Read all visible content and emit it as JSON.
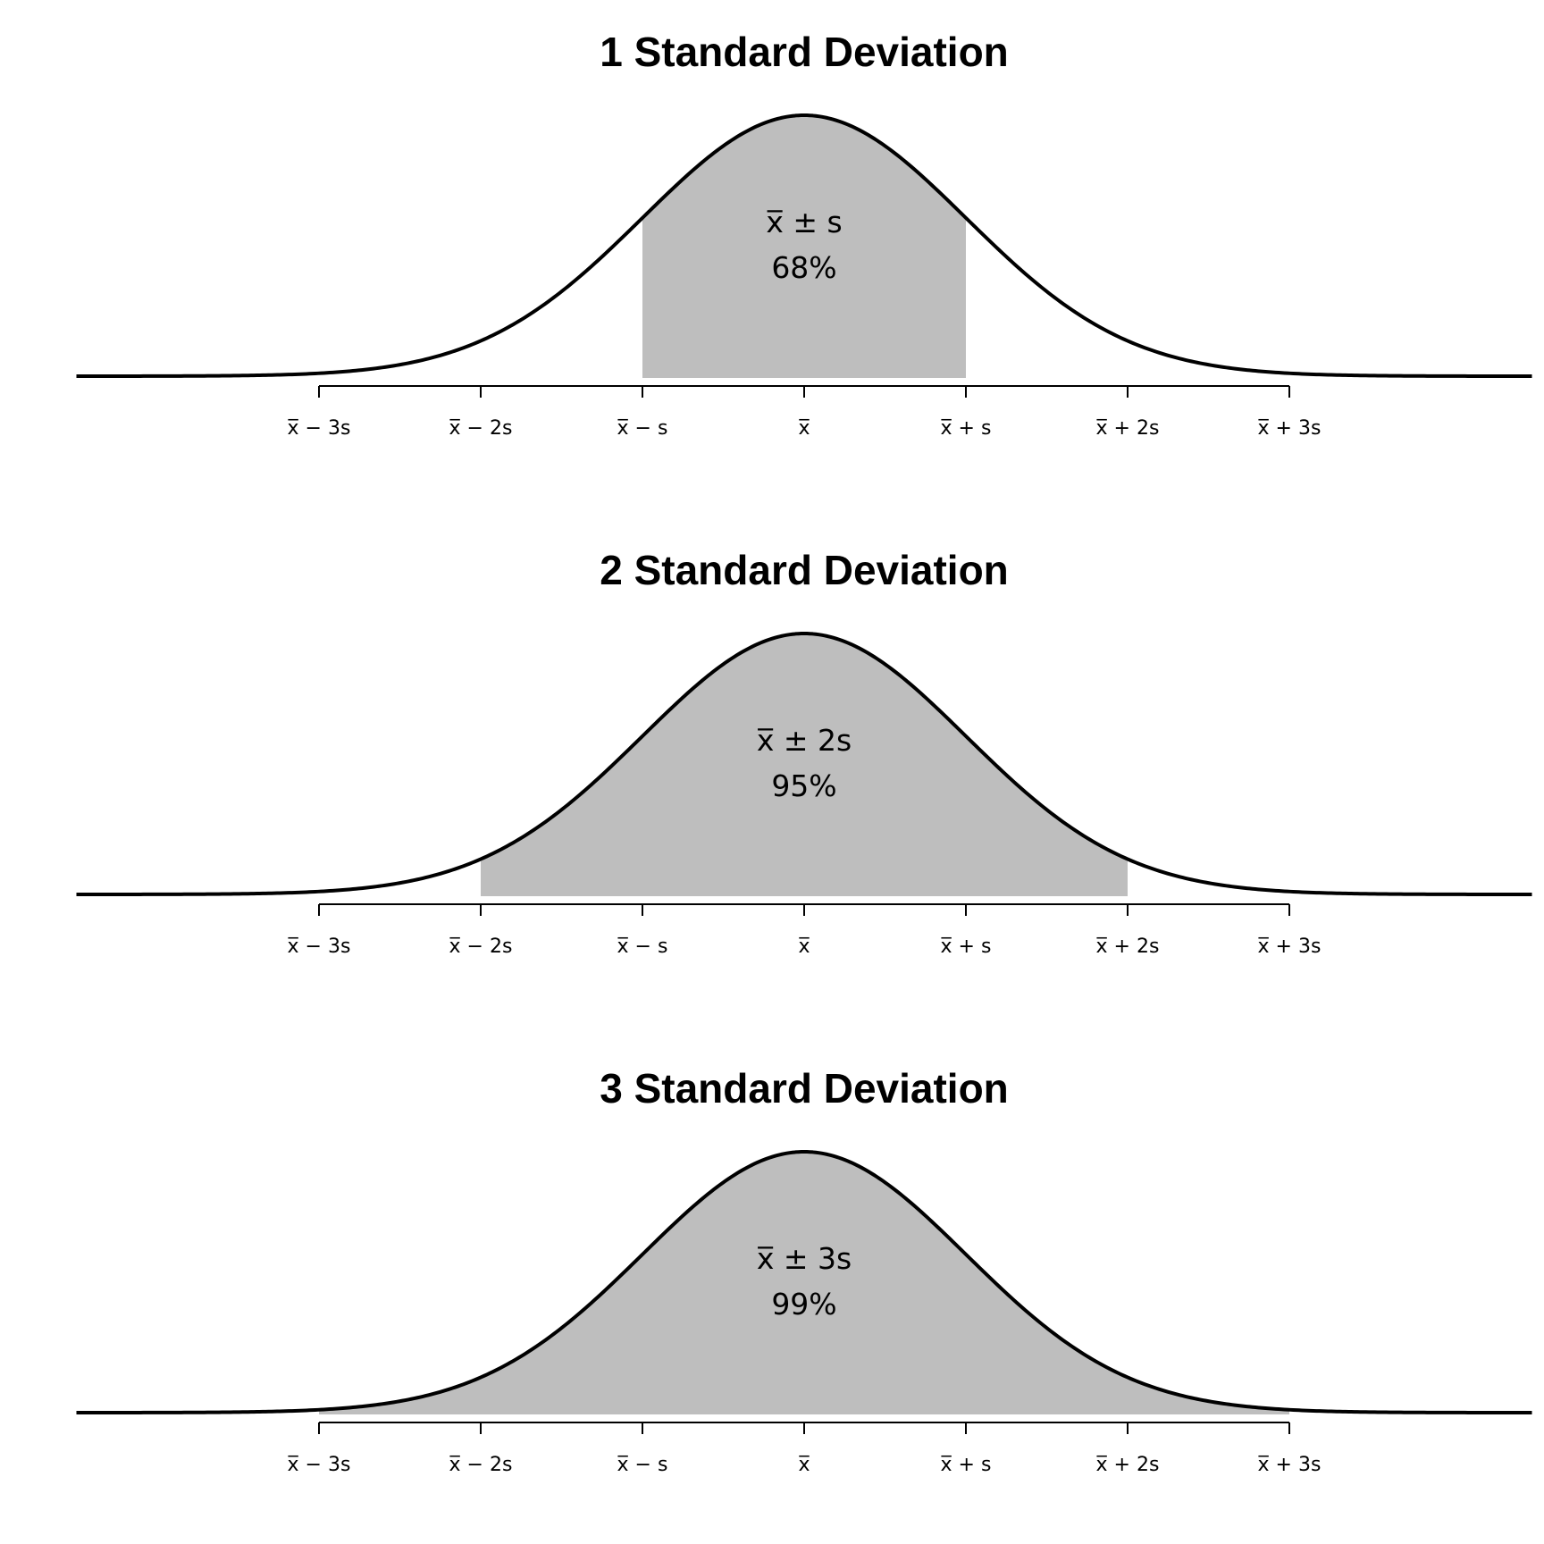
{
  "chart_data": [
    {
      "type": "area",
      "title": "1 Standard Deviation",
      "distribution": "normal",
      "mean": 0,
      "sd": 1,
      "xlim": [
        -4.5,
        4.5
      ],
      "shaded_range": [
        -1,
        1
      ],
      "tick_values": [
        -3,
        -2,
        -1,
        0,
        1,
        2,
        3
      ],
      "tick_labels": [
        "x̅ − 3s",
        "x̅ − 2s",
        "x̅ − s",
        "x̅",
        "x̅ + s",
        "x̅ + 2s",
        "x̅ + 3s"
      ],
      "annotation": [
        "x̅ ± s",
        "68%"
      ]
    },
    {
      "type": "area",
      "title": "2 Standard Deviation",
      "distribution": "normal",
      "mean": 0,
      "sd": 1,
      "xlim": [
        -4.5,
        4.5
      ],
      "shaded_range": [
        -2,
        2
      ],
      "tick_values": [
        -3,
        -2,
        -1,
        0,
        1,
        2,
        3
      ],
      "tick_labels": [
        "x̅ − 3s",
        "x̅ − 2s",
        "x̅ − s",
        "x̅",
        "x̅ + s",
        "x̅ + 2s",
        "x̅ + 3s"
      ],
      "annotation": [
        "x̅ ± 2s",
        "95%"
      ]
    },
    {
      "type": "area",
      "title": "3 Standard Deviation",
      "distribution": "normal",
      "mean": 0,
      "sd": 1,
      "xlim": [
        -4.5,
        4.5
      ],
      "shaded_range": [
        -3,
        3
      ],
      "tick_values": [
        -3,
        -2,
        -1,
        0,
        1,
        2,
        3
      ],
      "tick_labels": [
        "x̅ − 3s",
        "x̅ − 2s",
        "x̅ − s",
        "x̅",
        "x̅ + s",
        "x̅ + 2s",
        "x̅ + 3s"
      ],
      "annotation": [
        "x̅ ± 3s",
        "99%"
      ]
    }
  ],
  "colors": {
    "shade": "#bebebe",
    "curve": "#000000",
    "axis": "#000000"
  }
}
